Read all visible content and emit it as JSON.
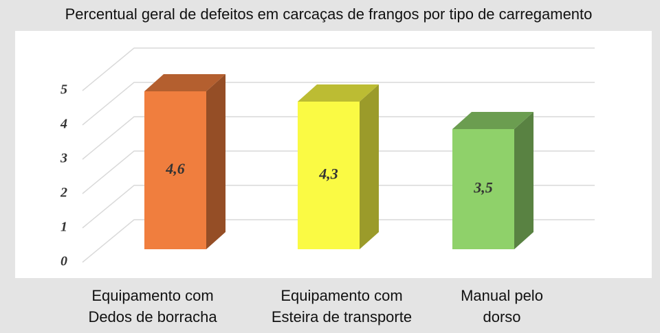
{
  "chart_data": {
    "type": "bar3d",
    "title": "Percentual geral de defeitos em carcaças de frangos por tipo de carregamento",
    "categories": [
      [
        "Equipamento com",
        "Dedos de borracha"
      ],
      [
        "Equipamento com",
        "Esteira de transporte"
      ],
      [
        "Manual pelo",
        "dorso"
      ]
    ],
    "values": [
      4.6,
      4.3,
      3.5
    ],
    "value_labels": [
      "4,6",
      "4,3",
      "3,5"
    ],
    "colors": [
      "#f07e3e",
      "#fafa44",
      "#8fd16a"
    ],
    "ylim": [
      0,
      5
    ],
    "yticks": [
      0,
      1,
      2,
      3,
      4,
      5
    ],
    "grid": true
  }
}
